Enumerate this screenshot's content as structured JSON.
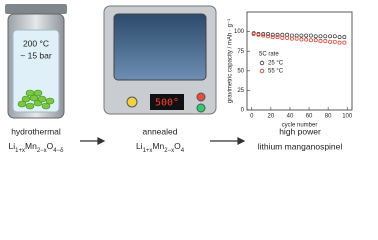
{
  "autoclave": {
    "temperature": "200 °C",
    "pressure": "~ 15 bar"
  },
  "oven": {
    "display": "500°"
  },
  "steps": [
    {
      "caption": "hydrothermal",
      "formula": [
        "Li",
        "1+x",
        "Mn",
        "2−x",
        "O",
        "4−δ"
      ]
    },
    {
      "caption": "annealed",
      "formula": [
        "Li",
        "1+x",
        "Mn",
        "2−x",
        "O",
        "4"
      ]
    },
    {
      "caption": "high power",
      "subcaption": "lithium manganospinel"
    }
  ],
  "chart_data": {
    "type": "scatter",
    "y_label": "gravimetric capacity / mAh · g⁻¹",
    "x_label": "cycle number",
    "legend_title": "5C rate",
    "x": [
      2,
      7,
      12,
      17,
      22,
      27,
      32,
      37,
      42,
      47,
      52,
      57,
      62,
      67,
      72,
      77,
      82,
      87,
      92,
      97
    ],
    "series": [
      {
        "name": "25 °C",
        "color": "#333333",
        "values": [
          98,
          97,
          97,
          97,
          96,
          96,
          96,
          96,
          95,
          95,
          95,
          95,
          95,
          94,
          94,
          94,
          94,
          94,
          93,
          93
        ]
      },
      {
        "name": "55 °C",
        "color": "#e0301e",
        "values": [
          97,
          96,
          95,
          94,
          93,
          93,
          92,
          92,
          91,
          91,
          90,
          90,
          89,
          89,
          88,
          88,
          87,
          87,
          86,
          86
        ]
      }
    ],
    "xlim": [
      -5,
      105
    ],
    "ylim": [
      0,
      125
    ],
    "xticks": [
      0,
      20,
      40,
      60,
      80,
      100
    ],
    "yticks": [
      0,
      25,
      50,
      75,
      100
    ]
  }
}
